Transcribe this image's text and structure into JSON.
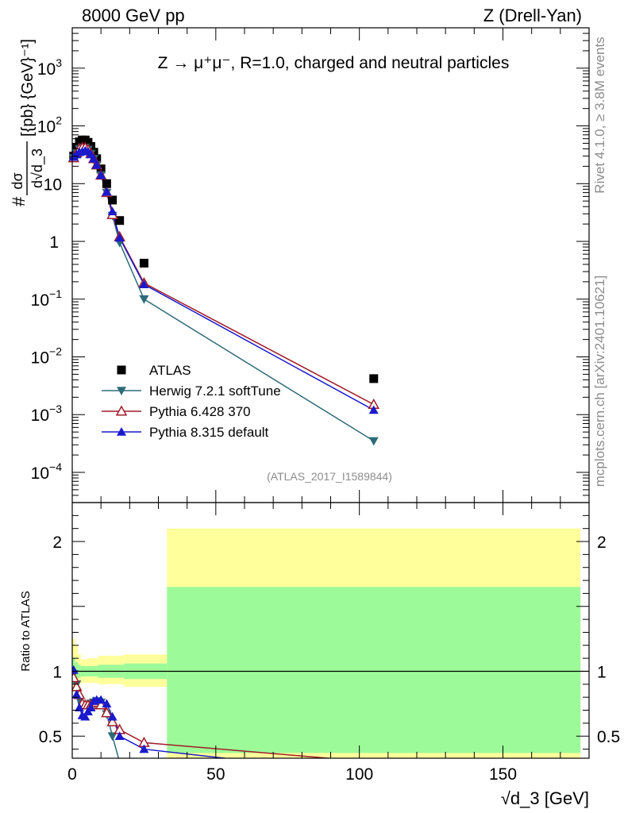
{
  "header": {
    "left": "8000 GeV pp",
    "right": "Z (Drell-Yan)"
  },
  "side_labels": {
    "rivet": "Rivet 4.1.0, ≥ 3.8M events",
    "mcplots": "mcplots.cern.ch [arXiv:2401.10621]"
  },
  "chart_data": [
    {
      "type": "line",
      "panel": "main",
      "title": "Z → μ⁺μ⁻, R=1.0, charged and neutral particles",
      "analysis_tag": "(ATLAS_2017_I1589844)",
      "xlabel": "√d_3 [GeV]",
      "ylabel_parts": {
        "hash": "#",
        "num": "dσ",
        "den": "d√d_3",
        "units": "[{pb} {GeV}⁻¹]"
      },
      "xlim": [
        0,
        180
      ],
      "ylim": [
        3e-05,
        5000
      ],
      "yscale": "log",
      "x_ticks": [
        0,
        50,
        100,
        150
      ],
      "y_ticks": [
        {
          "value": 0.0001,
          "base": "10",
          "exp": "−4"
        },
        {
          "value": 0.001,
          "base": "10",
          "exp": "−3"
        },
        {
          "value": 0.01,
          "base": "10",
          "exp": "−2"
        },
        {
          "value": 0.1,
          "base": "10",
          "exp": "−1"
        },
        {
          "value": 1,
          "base": "1",
          "exp": ""
        },
        {
          "value": 10,
          "base": "10",
          "exp": ""
        },
        {
          "value": 100,
          "base": "10",
          "exp": "2"
        },
        {
          "value": 1000,
          "base": "10",
          "exp": "3"
        }
      ],
      "legend_position": "bottom-left",
      "series": [
        {
          "name": "ATLAS",
          "color": "#000000",
          "marker": "square",
          "line": false,
          "x": [
            0.5,
            1.5,
            2.5,
            3.5,
            4.5,
            5.5,
            6.5,
            7.5,
            8.5,
            10,
            12,
            14,
            16.5,
            25,
            105
          ],
          "y": [
            30,
            42,
            53,
            57,
            57,
            52,
            44,
            35,
            27,
            18,
            10,
            5.2,
            2.3,
            0.42,
            0.0042
          ]
        },
        {
          "name": "Herwig 7.2.1 softTune",
          "color": "#2e6b78",
          "marker": "triangle-down",
          "line": true,
          "x": [
            0.5,
            1.5,
            2.5,
            3.5,
            4.5,
            5.5,
            6.5,
            7.5,
            8.5,
            10,
            12,
            14,
            16.5,
            25,
            105
          ],
          "y": [
            28,
            34,
            40,
            42,
            42,
            39,
            33,
            27,
            21,
            14,
            7,
            2.8,
            0.95,
            0.1,
            0.00035
          ]
        },
        {
          "name": "Pythia 6.428 370",
          "color": "#a01c2a",
          "marker": "triangle-open",
          "line": true,
          "x": [
            0.5,
            1.5,
            2.5,
            3.5,
            4.5,
            5.5,
            6.5,
            7.5,
            8.5,
            10,
            12,
            14,
            16.5,
            25,
            105
          ],
          "y": [
            28,
            34,
            40,
            42,
            42,
            39,
            33,
            27,
            21,
            14,
            7,
            2.9,
            1.2,
            0.19,
            0.0015
          ]
        },
        {
          "name": "Pythia 8.315 default",
          "color": "#1a1acc",
          "marker": "triangle",
          "line": true,
          "x": [
            0.5,
            1.5,
            2.5,
            3.5,
            4.5,
            5.5,
            6.5,
            7.5,
            8.5,
            10,
            12,
            14,
            16.5,
            25,
            105
          ],
          "y": [
            29,
            32,
            35,
            36,
            37,
            36,
            32,
            27,
            21,
            14,
            7.2,
            3.3,
            1.15,
            0.18,
            0.0012
          ]
        }
      ]
    },
    {
      "type": "line",
      "panel": "ratio",
      "ylabel": "Ratio to ATLAS",
      "xlim": [
        0,
        180
      ],
      "ylim": [
        0.33,
        2.3
      ],
      "y_ticks": [
        {
          "value": 0.5,
          "label": "0.5"
        },
        {
          "value": 1,
          "label": "1"
        },
        {
          "value": 2,
          "label": "2"
        }
      ],
      "uncertainty_bands": [
        {
          "x0": 0,
          "x1": 1,
          "stat_lo": 0.9,
          "stat_hi": 1.1,
          "tot_lo": 0.85,
          "tot_hi": 1.25
        },
        {
          "x0": 1,
          "x1": 2,
          "stat_lo": 0.93,
          "stat_hi": 1.07,
          "tot_lo": 0.88,
          "tot_hi": 1.2
        },
        {
          "x0": 2,
          "x1": 3,
          "stat_lo": 0.95,
          "stat_hi": 1.05,
          "tot_lo": 0.9,
          "tot_hi": 1.13
        },
        {
          "x0": 3,
          "x1": 5,
          "stat_lo": 0.96,
          "stat_hi": 1.04,
          "tot_lo": 0.91,
          "tot_hi": 1.09
        },
        {
          "x0": 5,
          "x1": 9,
          "stat_lo": 0.96,
          "stat_hi": 1.04,
          "tot_lo": 0.91,
          "tot_hi": 1.1
        },
        {
          "x0": 9,
          "x1": 18,
          "stat_lo": 0.95,
          "stat_hi": 1.05,
          "tot_lo": 0.9,
          "tot_hi": 1.12
        },
        {
          "x0": 18,
          "x1": 33,
          "stat_lo": 0.94,
          "stat_hi": 1.06,
          "tot_lo": 0.88,
          "tot_hi": 1.13
        },
        {
          "x0": 33,
          "x1": 177,
          "stat_lo": 0.37,
          "stat_hi": 1.65,
          "tot_lo": 0.33,
          "tot_hi": 2.1
        }
      ],
      "band_colors": {
        "stat": "#9cfb98",
        "total": "#ffff9c"
      },
      "series": [
        {
          "name": "Herwig 7.2.1 softTune",
          "color": "#2e6b78",
          "marker": "triangle-down",
          "x": [
            0.5,
            1.5,
            2.5,
            3.5,
            4.5,
            5.5,
            6.5,
            7.5,
            8.5,
            10,
            12,
            14,
            16.5
          ],
          "y": [
            0.98,
            0.9,
            0.78,
            0.74,
            0.74,
            0.74,
            0.75,
            0.76,
            0.77,
            0.76,
            0.67,
            0.5,
            0.3
          ]
        },
        {
          "name": "Pythia 6.428 370",
          "color": "#a01c2a",
          "marker": "triangle-open",
          "x": [
            0.5,
            1.5,
            2.5,
            3.5,
            4.5,
            5.5,
            6.5,
            7.5,
            8.5,
            10,
            12,
            14,
            16.5,
            25,
            105
          ],
          "y": [
            0.95,
            0.88,
            0.82,
            0.75,
            0.74,
            0.74,
            0.74,
            0.76,
            0.76,
            0.74,
            0.68,
            0.61,
            0.55,
            0.45,
            0.3
          ]
        },
        {
          "name": "Pythia 8.315 default",
          "color": "#1a1acc",
          "marker": "triangle",
          "x": [
            0.5,
            1.5,
            2.5,
            3.5,
            4.5,
            5.5,
            6.5,
            7.5,
            8.5,
            10,
            12,
            14,
            16.5,
            25,
            105
          ],
          "y": [
            1.01,
            0.82,
            0.72,
            0.66,
            0.65,
            0.69,
            0.72,
            0.77,
            0.78,
            0.78,
            0.75,
            0.65,
            0.5,
            0.4,
            0.2
          ]
        }
      ]
    }
  ]
}
